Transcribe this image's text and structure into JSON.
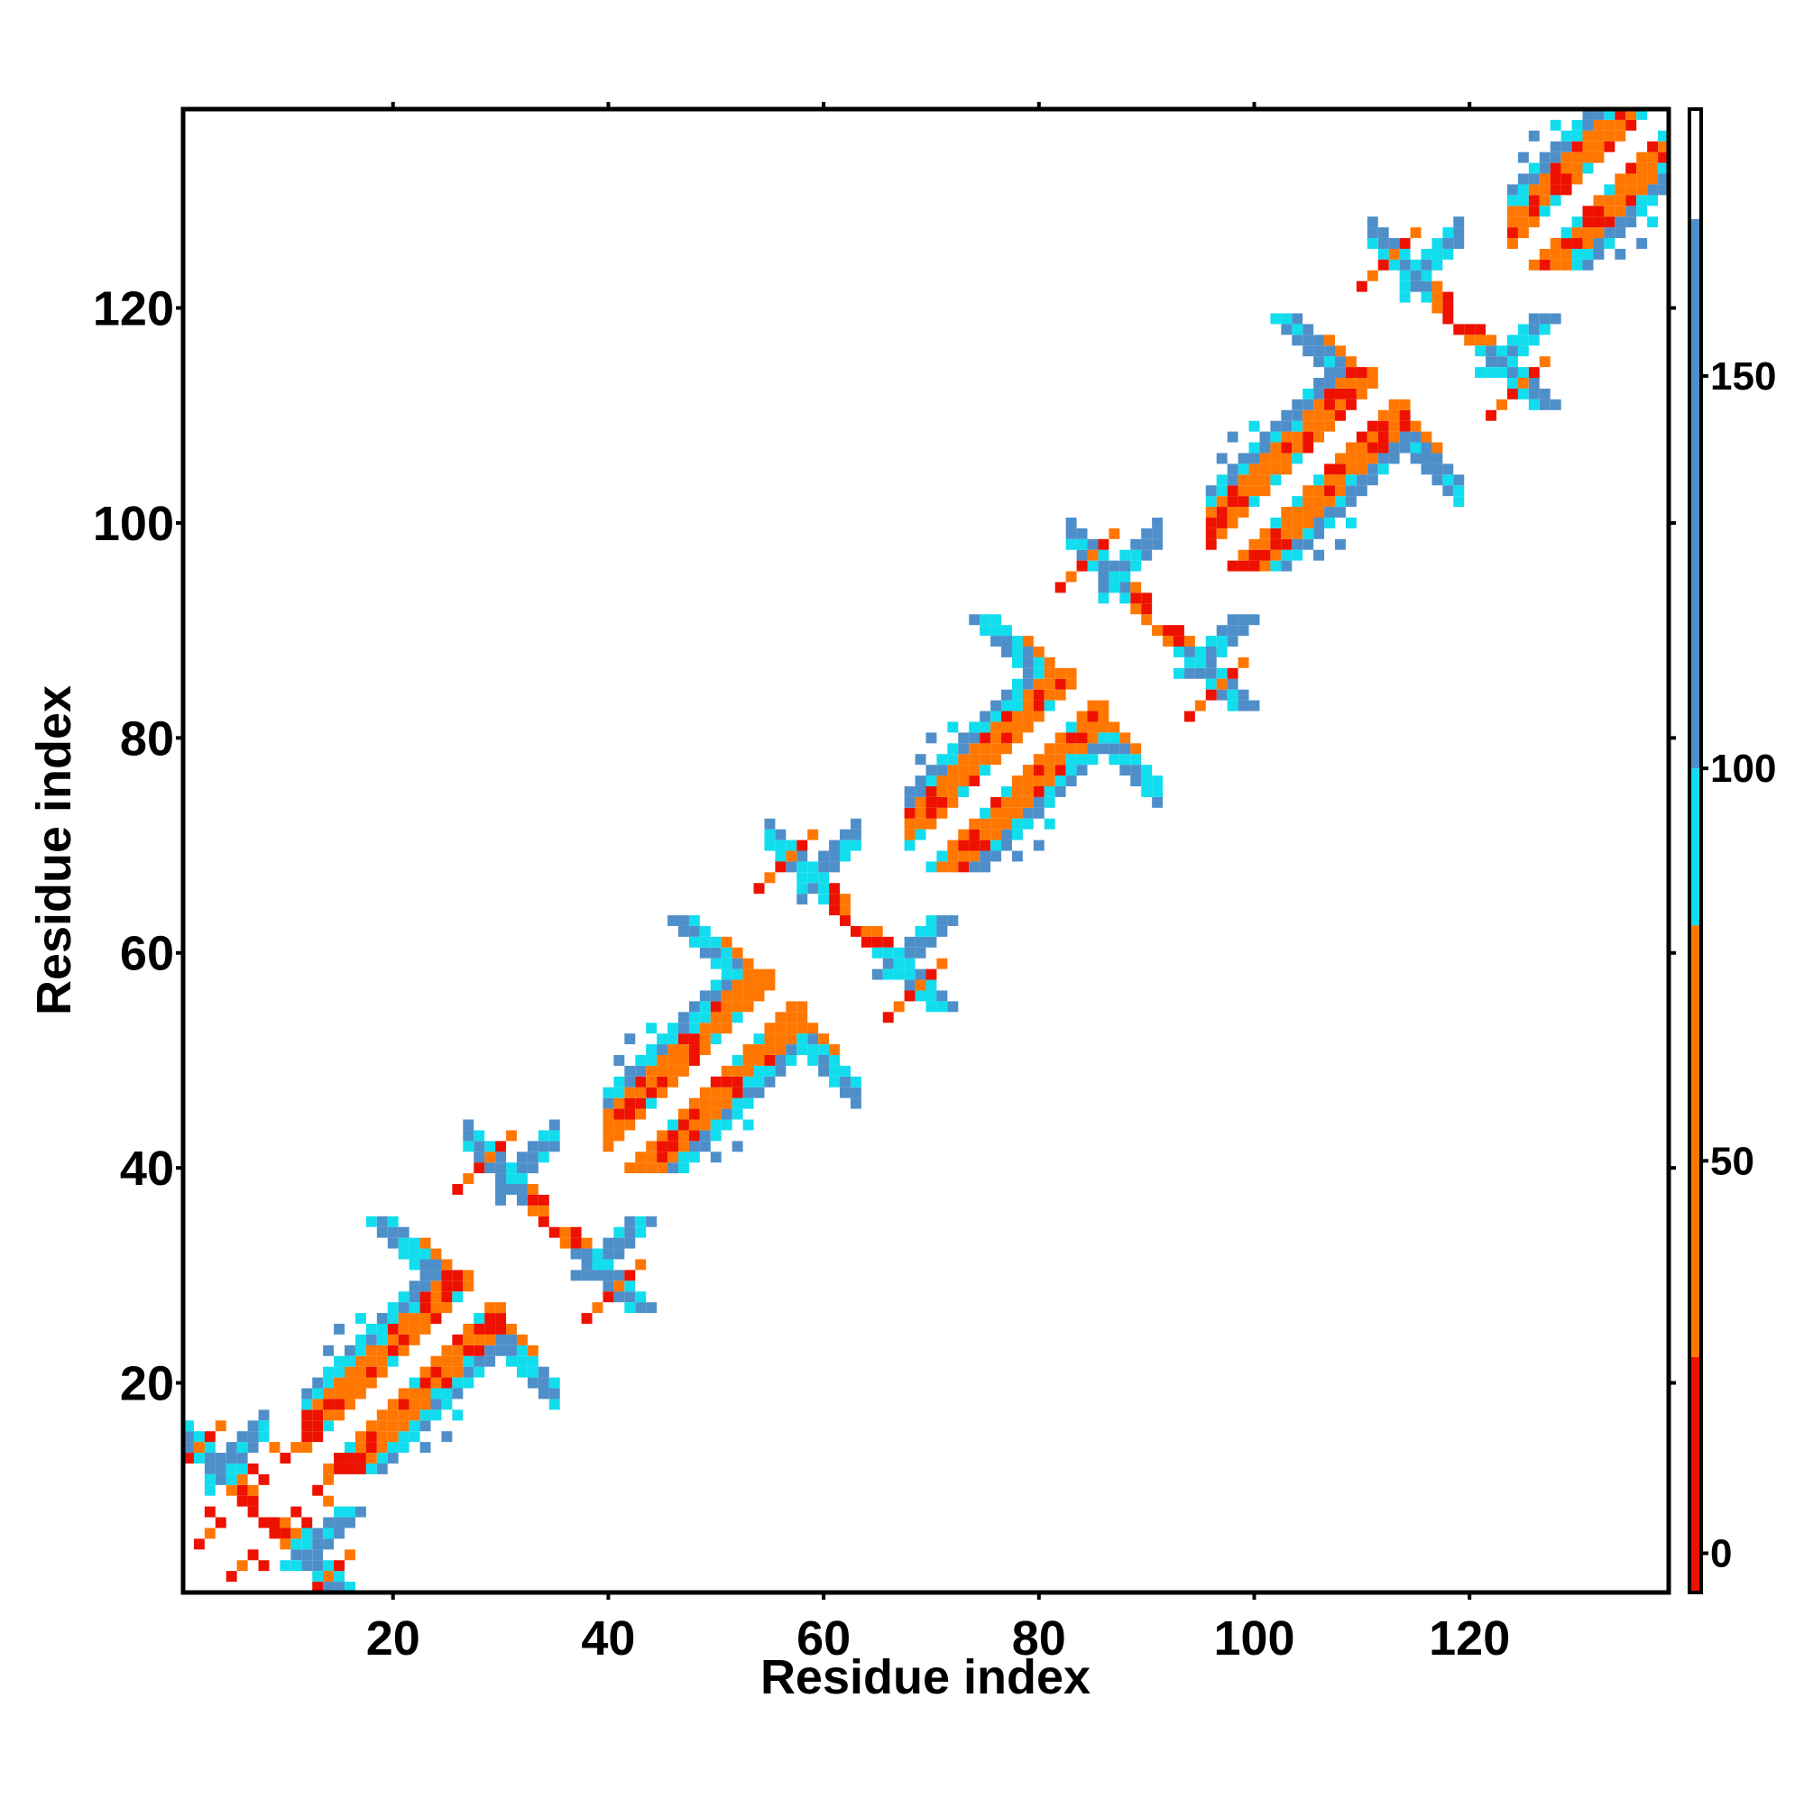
{
  "chart_data": {
    "type": "heatmap",
    "title": "",
    "xlabel": "Residue index",
    "ylabel": "Residue index",
    "xlim": [
      1,
      138
    ],
    "ylim": [
      1,
      138
    ],
    "x_ticks": [
      20,
      40,
      60,
      80,
      100,
      120
    ],
    "y_ticks": [
      20,
      40,
      60,
      80,
      100,
      120
    ],
    "x_tick_labels": [
      "20",
      "40",
      "60",
      "80",
      "100",
      "120"
    ],
    "y_tick_labels": [
      "20",
      "40",
      "60",
      "80",
      "100",
      "120"
    ],
    "grid": false,
    "symmetric": true,
    "colorbar": {
      "range": [
        -5,
        184
      ],
      "ticks": [
        0,
        50,
        100,
        150
      ],
      "tick_labels": [
        "0",
        "50",
        "100",
        "150"
      ],
      "bands": [
        {
          "from": -5,
          "to": 25,
          "color": "#ee1100"
        },
        {
          "from": 25,
          "to": 80,
          "color": "#ff7700"
        },
        {
          "from": 80,
          "to": 100,
          "color": "#11ddee"
        },
        {
          "from": 100,
          "to": 170,
          "color": "#4f8fc9"
        },
        {
          "from": 170,
          "to": 184,
          "color": "#ffffff"
        }
      ]
    },
    "repeat_centers": [
      8,
      35,
      63,
      91,
      119
    ],
    "helix_segments": [
      [
        12,
        27
      ],
      [
        40,
        55
      ],
      [
        68,
        83
      ],
      [
        96,
        111
      ],
      [
        124,
        138
      ]
    ],
    "cells_note": "symmetric contact distance map; upper triangle cells listed",
    "cells": [
      {
        "i": 2,
        "j": 2,
        "v": 10
      },
      {
        "i": 3,
        "j": 3,
        "v": 10
      },
      {
        "i": 2,
        "j": 5,
        "v": 10
      },
      {
        "i": 3,
        "j": 6,
        "v": 60
      },
      {
        "i": 4,
        "j": 7,
        "v": 10
      },
      {
        "i": 6,
        "j": 9,
        "v": 10
      },
      {
        "i": 7,
        "j": 10,
        "v": 60
      },
      {
        "i": 8,
        "j": 11,
        "v": 10
      },
      {
        "i": 10,
        "j": 13,
        "v": 10
      },
      {
        "i": 11,
        "j": 14,
        "v": 60
      },
      {
        "i": 12,
        "j": 15,
        "v": 10
      },
      {
        "i": 3,
        "j": 8,
        "v": 10
      },
      {
        "i": 5,
        "j": 10,
        "v": 60
      },
      {
        "i": 7,
        "j": 12,
        "v": 10
      },
      {
        "i": 9,
        "j": 14,
        "v": 60
      },
      {
        "i": 4,
        "j": 12,
        "v": 130
      },
      {
        "i": 5,
        "j": 11,
        "v": 130
      },
      {
        "i": 6,
        "j": 10,
        "v": 90
      },
      {
        "i": 3,
        "j": 13,
        "v": 130
      },
      {
        "i": 2,
        "j": 14,
        "v": 90
      },
      {
        "i": 6,
        "j": 12,
        "v": 90
      }
    ]
  }
}
